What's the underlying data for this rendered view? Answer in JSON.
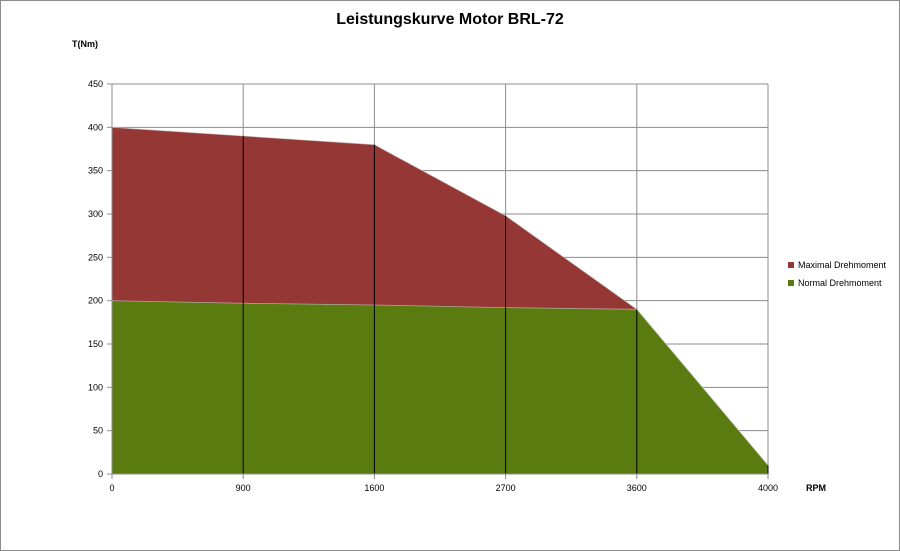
{
  "chart_data": {
    "type": "area",
    "title": "Leistungskurve Motor BRL-72",
    "ylabel": "T(Nm)",
    "xlabel": "RPM",
    "categories": [
      "0",
      "900",
      "1600",
      "2700",
      "3600",
      "4000"
    ],
    "ylim": [
      0,
      450
    ],
    "yticks": [
      0,
      50,
      100,
      150,
      200,
      250,
      300,
      350,
      400,
      450
    ],
    "grid": true,
    "legend_position": "right",
    "series": [
      {
        "name": "Maximal Drehmoment",
        "values": [
          400,
          390,
          380,
          298,
          190,
          10
        ],
        "color": "#953735"
      },
      {
        "name": "Normal Drehmoment",
        "values": [
          200,
          197,
          195,
          192,
          190,
          10
        ],
        "color": "#5a7b10"
      }
    ]
  }
}
